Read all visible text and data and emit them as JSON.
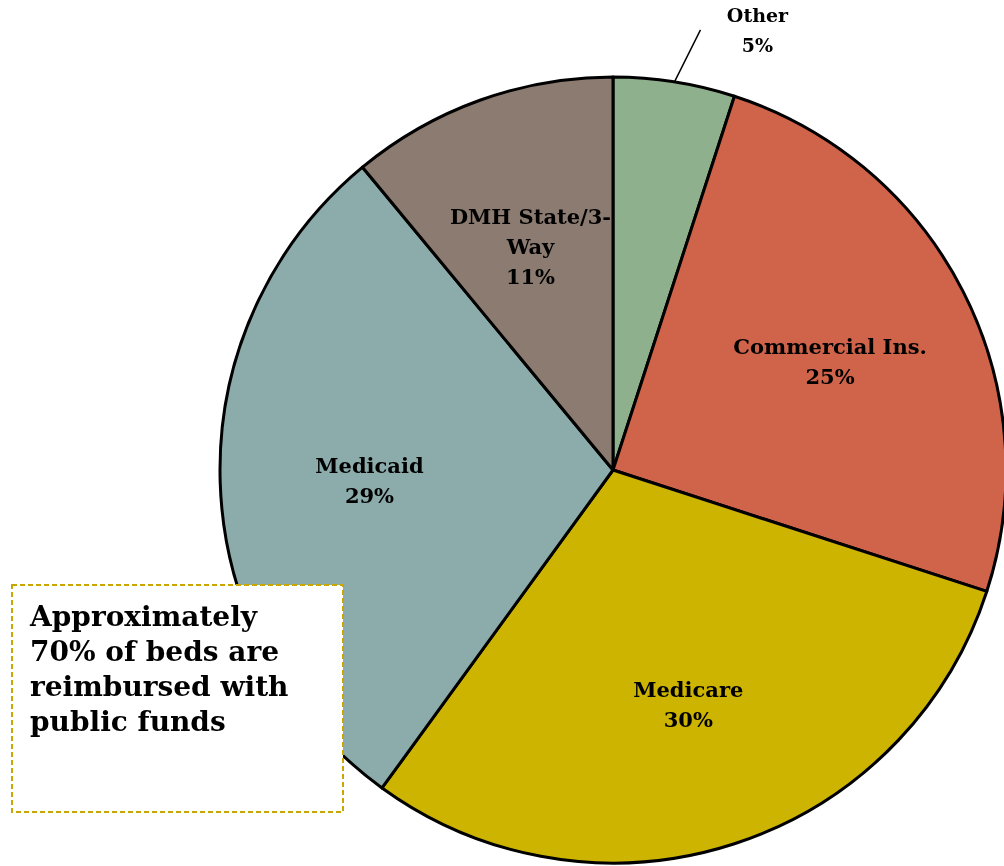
{
  "chart_data": {
    "type": "pie",
    "categories": [
      "Other",
      "Commercial Ins.",
      "Medicare",
      "Medicaid",
      "DMH State/3-Way"
    ],
    "values": [
      5,
      25,
      30,
      29,
      11
    ],
    "colors": [
      "#8fb08c",
      "#d0644a",
      "#ccb400",
      "#8cacac",
      "#8b7b70"
    ],
    "value_labels": [
      "5%",
      "25%",
      "30%",
      "29%",
      "11%"
    ],
    "annotations": [
      "Approximately 70% of beds are reimbursed with public funds"
    ]
  }
}
